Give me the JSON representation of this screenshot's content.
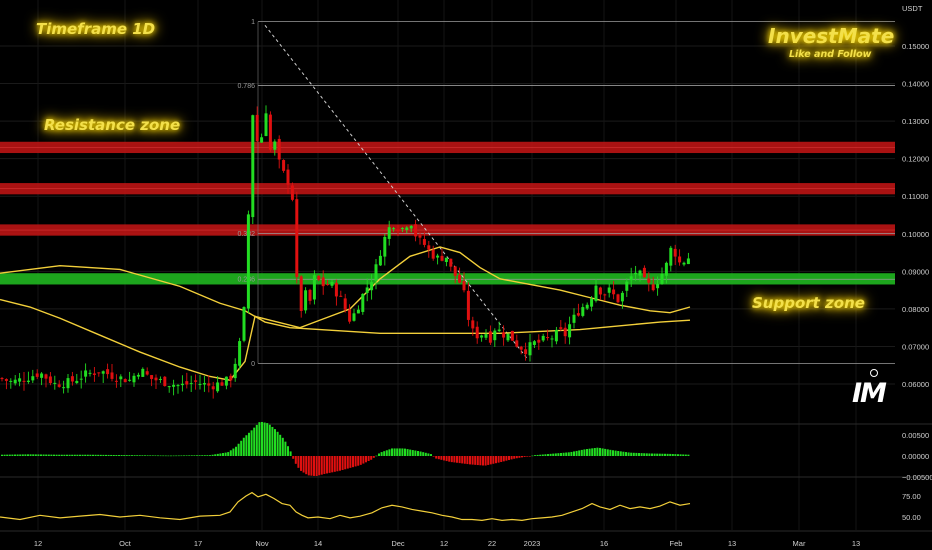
{
  "colors": {
    "background": "#000000",
    "bull": "#22dd22",
    "bear": "#e01010",
    "ma": "#f2cf3a",
    "resistance": "#c01414",
    "support": "#1fae1f",
    "annotation": "#f3e04a"
  },
  "annotations": {
    "timeframe": "Timeframe 1D",
    "resistance_label": "Resistance zone",
    "support_label": "Support zone",
    "brand": "InvestMate",
    "brand_tagline": "Like and Follow"
  },
  "logo": {
    "icon": "im-logo-icon",
    "text": "IM"
  },
  "chart_data": [
    {
      "type": "candlestick",
      "title": "",
      "y_unit": "USDT",
      "ylim": [
        0.055,
        0.159
      ],
      "y_ticks": [
        "0.15000",
        "0.14000",
        "0.13000",
        "0.12000",
        "0.11000",
        "0.10000",
        "0.09000",
        "0.08000",
        "0.07000",
        "0.06000"
      ],
      "x_ticks": [
        "12",
        "Oct",
        "17",
        "Nov",
        "14",
        "Dec",
        "12",
        "22",
        "2023",
        "16",
        "Feb",
        "13",
        "Mar",
        "13"
      ],
      "close_path": [
        [
          0,
          0.0615
        ],
        [
          12,
          0.0605
        ],
        [
          25,
          0.0615
        ],
        [
          40,
          0.063
        ],
        [
          55,
          0.06
        ],
        [
          70,
          0.0605
        ],
        [
          85,
          0.0625
        ],
        [
          100,
          0.0635
        ],
        [
          115,
          0.062
        ],
        [
          130,
          0.061
        ],
        [
          140,
          0.064
        ],
        [
          150,
          0.0615
        ],
        [
          165,
          0.0605
        ],
        [
          180,
          0.0595
        ],
        [
          195,
          0.0605
        ],
        [
          210,
          0.0595
        ],
        [
          225,
          0.0605
        ],
        [
          232,
          0.062
        ],
        [
          237,
          0.068
        ],
        [
          242,
          0.073
        ],
        [
          246,
          0.086
        ],
        [
          250,
          0.118
        ],
        [
          253,
          0.133
        ],
        [
          256,
          0.12
        ],
        [
          259,
          0.132
        ],
        [
          262,
          0.125
        ],
        [
          266,
          0.133
        ],
        [
          270,
          0.122
        ],
        [
          274,
          0.125
        ],
        [
          278,
          0.12
        ],
        [
          282,
          0.116
        ],
        [
          286,
          0.116
        ],
        [
          290,
          0.112
        ],
        [
          294,
          0.108
        ],
        [
          297,
          0.086
        ],
        [
          300,
          0.074
        ],
        [
          303,
          0.089
        ],
        [
          306,
          0.083
        ],
        [
          310,
          0.082
        ],
        [
          315,
          0.089
        ],
        [
          320,
          0.087
        ],
        [
          325,
          0.086
        ],
        [
          330,
          0.087
        ],
        [
          335,
          0.085
        ],
        [
          340,
          0.083
        ],
        [
          345,
          0.08
        ],
        [
          350,
          0.077
        ],
        [
          355,
          0.079
        ],
        [
          360,
          0.082
        ],
        [
          365,
          0.085
        ],
        [
          370,
          0.087
        ],
        [
          375,
          0.09
        ],
        [
          380,
          0.095
        ],
        [
          385,
          0.099
        ],
        [
          390,
          0.102
        ],
        [
          395,
          0.103
        ],
        [
          400,
          0.101
        ],
        [
          405,
          0.102
        ],
        [
          410,
          0.104
        ],
        [
          415,
          0.1
        ],
        [
          420,
          0.098
        ],
        [
          425,
          0.097
        ],
        [
          430,
          0.095
        ],
        [
          435,
          0.094
        ],
        [
          440,
          0.093
        ],
        [
          445,
          0.095
        ],
        [
          450,
          0.091
        ],
        [
          455,
          0.089
        ],
        [
          460,
          0.087
        ],
        [
          465,
          0.083
        ],
        [
          470,
          0.075
        ],
        [
          475,
          0.073
        ],
        [
          480,
          0.073
        ],
        [
          485,
          0.074
        ],
        [
          490,
          0.072
        ],
        [
          495,
          0.075
        ],
        [
          500,
          0.074
        ],
        [
          505,
          0.073
        ],
        [
          510,
          0.073
        ],
        [
          515,
          0.071
        ],
        [
          520,
          0.07
        ],
        [
          525,
          0.069
        ],
        [
          530,
          0.07
        ],
        [
          535,
          0.071
        ],
        [
          540,
          0.071
        ],
        [
          545,
          0.072
        ],
        [
          550,
          0.072
        ],
        [
          555,
          0.073
        ],
        [
          560,
          0.074
        ],
        [
          565,
          0.073
        ],
        [
          570,
          0.076
        ],
        [
          575,
          0.078
        ],
        [
          580,
          0.08
        ],
        [
          585,
          0.081
        ],
        [
          590,
          0.082
        ],
        [
          595,
          0.087
        ],
        [
          600,
          0.085
        ],
        [
          605,
          0.084
        ],
        [
          610,
          0.085
        ],
        [
          615,
          0.083
        ],
        [
          620,
          0.082
        ],
        [
          625,
          0.086
        ],
        [
          630,
          0.088
        ],
        [
          635,
          0.09
        ],
        [
          640,
          0.089
        ],
        [
          645,
          0.087
        ],
        [
          650,
          0.086
        ],
        [
          655,
          0.086
        ],
        [
          660,
          0.089
        ],
        [
          665,
          0.09
        ],
        [
          670,
          0.096
        ],
        [
          675,
          0.095
        ],
        [
          680,
          0.092
        ],
        [
          685,
          0.093
        ],
        [
          690,
          0.094
        ]
      ],
      "ma_fast_path": [
        [
          0,
          0.0825
        ],
        [
          30,
          0.0805
        ],
        [
          60,
          0.0775
        ],
        [
          100,
          0.073
        ],
        [
          140,
          0.0685
        ],
        [
          180,
          0.0645
        ],
        [
          210,
          0.062
        ],
        [
          230,
          0.061
        ],
        [
          245,
          0.066
        ],
        [
          255,
          0.078
        ],
        [
          270,
          0.077
        ],
        [
          300,
          0.075
        ],
        [
          320,
          0.077
        ],
        [
          350,
          0.08
        ],
        [
          380,
          0.088
        ],
        [
          410,
          0.094
        ],
        [
          440,
          0.0965
        ],
        [
          460,
          0.095
        ],
        [
          480,
          0.091
        ],
        [
          500,
          0.088
        ],
        [
          530,
          0.0865
        ],
        [
          560,
          0.085
        ],
        [
          590,
          0.083
        ],
        [
          620,
          0.081
        ],
        [
          650,
          0.0795
        ],
        [
          670,
          0.079
        ],
        [
          690,
          0.0805
        ]
      ],
      "ma_slow_path": [
        [
          0,
          0.0895
        ],
        [
          60,
          0.0915
        ],
        [
          120,
          0.0905
        ],
        [
          180,
          0.086
        ],
        [
          220,
          0.0815
        ],
        [
          245,
          0.0795
        ],
        [
          265,
          0.0765
        ],
        [
          290,
          0.075
        ],
        [
          320,
          0.0745
        ],
        [
          350,
          0.074
        ],
        [
          380,
          0.0735
        ],
        [
          420,
          0.0735
        ],
        [
          460,
          0.0735
        ],
        [
          500,
          0.0735
        ],
        [
          540,
          0.074
        ],
        [
          580,
          0.0745
        ],
        [
          620,
          0.0755
        ],
        [
          660,
          0.0765
        ],
        [
          690,
          0.077
        ]
      ],
      "resistance_zones": [
        [
          0.1215,
          0.1245
        ],
        [
          0.1105,
          0.1135
        ],
        [
          0.0995,
          0.1025
        ]
      ],
      "support_zones": [
        [
          0.0865,
          0.0895
        ]
      ],
      "fibonacci": {
        "x_start": 258,
        "x_end": 895,
        "anchor_high": 0.1565,
        "anchor_low": 0.0655,
        "levels": [
          {
            "label": "1",
            "value": 0.1565
          },
          {
            "label": "0.786",
            "value": 0.1395
          },
          {
            "label": "0.382",
            "value": 0.1001
          },
          {
            "label": "0.236",
            "value": 0.0879
          },
          {
            "label": "0",
            "value": 0.0655
          }
        ]
      },
      "trend_line": [
        [
          265,
          0.1555
        ],
        [
          528,
          0.0665
        ]
      ]
    },
    {
      "type": "bar",
      "title": "",
      "ylim": [
        -0.006,
        0.009
      ],
      "y_ticks": [
        "0.00500",
        "0.00000",
        "−0.00500"
      ],
      "histogram": [
        [
          0,
          0.0003
        ],
        [
          30,
          0.0004
        ],
        [
          60,
          0.0003
        ],
        [
          90,
          0.0003
        ],
        [
          130,
          0.0002
        ],
        [
          170,
          0.0001
        ],
        [
          210,
          0.0002
        ],
        [
          228,
          0.0009
        ],
        [
          236,
          0.0022
        ],
        [
          244,
          0.0044
        ],
        [
          252,
          0.0062
        ],
        [
          260,
          0.0082
        ],
        [
          268,
          0.0078
        ],
        [
          276,
          0.0062
        ],
        [
          284,
          0.004
        ],
        [
          290,
          0.0015
        ],
        [
          294,
          -0.0012
        ],
        [
          300,
          -0.0034
        ],
        [
          308,
          -0.0046
        ],
        [
          316,
          -0.0048
        ],
        [
          324,
          -0.0043
        ],
        [
          340,
          -0.0035
        ],
        [
          360,
          -0.0022
        ],
        [
          372,
          -0.0008
        ],
        [
          380,
          0.0008
        ],
        [
          392,
          0.0018
        ],
        [
          404,
          0.0018
        ],
        [
          420,
          0.0011
        ],
        [
          432,
          0.0004
        ],
        [
          436,
          -0.0006
        ],
        [
          450,
          -0.0014
        ],
        [
          470,
          -0.002
        ],
        [
          485,
          -0.0023
        ],
        [
          500,
          -0.0015
        ],
        [
          515,
          -0.0006
        ],
        [
          525,
          -0.0002
        ],
        [
          535,
          0.0002
        ],
        [
          550,
          0.0005
        ],
        [
          570,
          0.0009
        ],
        [
          585,
          0.0016
        ],
        [
          598,
          0.002
        ],
        [
          612,
          0.0014
        ],
        [
          630,
          0.0008
        ],
        [
          650,
          0.0006
        ],
        [
          670,
          0.0005
        ],
        [
          690,
          0.0003
        ]
      ]
    },
    {
      "type": "line",
      "title": "",
      "ylim": [
        45,
        82
      ],
      "y_ticks": [
        "75.00",
        "50.00"
      ],
      "series_path": [
        [
          0,
          50
        ],
        [
          20,
          47
        ],
        [
          40,
          52
        ],
        [
          60,
          49
        ],
        [
          80,
          51
        ],
        [
          100,
          53
        ],
        [
          120,
          50
        ],
        [
          140,
          52
        ],
        [
          160,
          49
        ],
        [
          180,
          47
        ],
        [
          200,
          51
        ],
        [
          220,
          52
        ],
        [
          230,
          56
        ],
        [
          238,
          68
        ],
        [
          246,
          75
        ],
        [
          252,
          79
        ],
        [
          258,
          74
        ],
        [
          266,
          77
        ],
        [
          274,
          72
        ],
        [
          282,
          66
        ],
        [
          290,
          64
        ],
        [
          296,
          56
        ],
        [
          302,
          52
        ],
        [
          308,
          49
        ],
        [
          318,
          50
        ],
        [
          330,
          48
        ],
        [
          340,
          52
        ],
        [
          350,
          49
        ],
        [
          360,
          51
        ],
        [
          372,
          55
        ],
        [
          382,
          61
        ],
        [
          392,
          64
        ],
        [
          402,
          62
        ],
        [
          412,
          59
        ],
        [
          422,
          57
        ],
        [
          432,
          55
        ],
        [
          442,
          52
        ],
        [
          452,
          50
        ],
        [
          462,
          47
        ],
        [
          472,
          47
        ],
        [
          482,
          46
        ],
        [
          492,
          48
        ],
        [
          502,
          46
        ],
        [
          512,
          47
        ],
        [
          522,
          46
        ],
        [
          532,
          48
        ],
        [
          542,
          49
        ],
        [
          552,
          50
        ],
        [
          562,
          52
        ],
        [
          572,
          56
        ],
        [
          582,
          60
        ],
        [
          592,
          66
        ],
        [
          600,
          62
        ],
        [
          610,
          59
        ],
        [
          620,
          64
        ],
        [
          630,
          60
        ],
        [
          640,
          62
        ],
        [
          650,
          60
        ],
        [
          660,
          63
        ],
        [
          670,
          68
        ],
        [
          680,
          64
        ],
        [
          690,
          66
        ]
      ]
    }
  ]
}
